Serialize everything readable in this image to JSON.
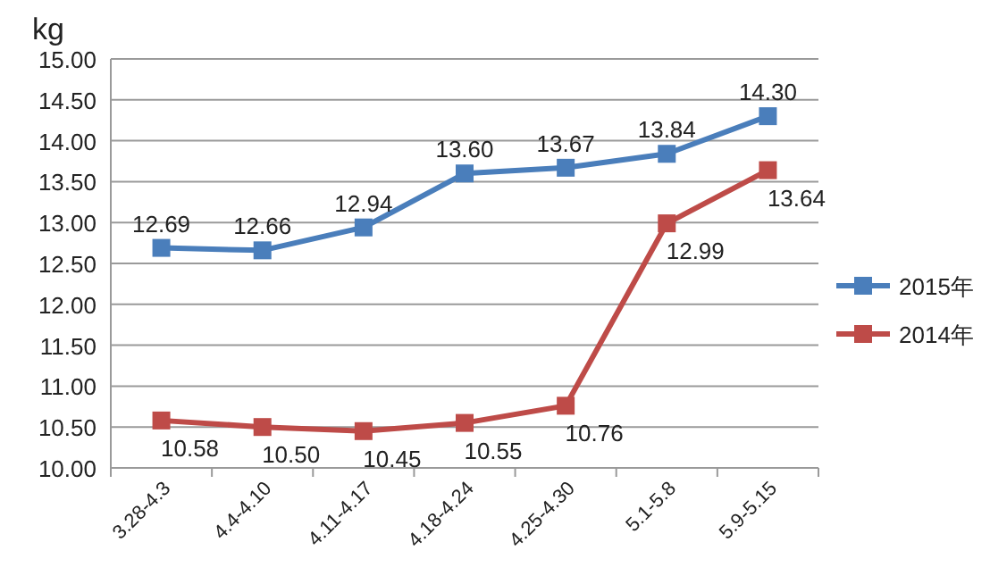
{
  "chart_data": {
    "type": "line",
    "ylabel": "kg",
    "categories": [
      "3.28-4.3",
      "4.4-4.10",
      "4.11-4.17",
      "4.18-4.24",
      "4.25-4.30",
      "5.1-5.8",
      "5.9-5.15"
    ],
    "series": [
      {
        "name": "2015年",
        "color": "#4a7ebb",
        "values": [
          12.69,
          12.66,
          12.94,
          13.6,
          13.67,
          13.84,
          14.3
        ],
        "value_labels": [
          "12.69",
          "12.66",
          "12.94",
          "13.60",
          "13.67",
          "13.84",
          "14.30"
        ]
      },
      {
        "name": "2014年",
        "color": "#be4b48",
        "values": [
          10.58,
          10.5,
          10.45,
          10.55,
          10.76,
          12.99,
          13.64
        ],
        "value_labels": [
          "10.58",
          "10.50",
          "10.45",
          "10.55",
          "10.76",
          "12.99",
          "13.64"
        ]
      }
    ],
    "ylim": [
      10,
      15
    ],
    "yticks": [
      {
        "value": 10,
        "label": "10.00"
      },
      {
        "value": 10.5,
        "label": "10.50"
      },
      {
        "value": 11,
        "label": "11.00"
      },
      {
        "value": 11.5,
        "label": "11.50"
      },
      {
        "value": 12,
        "label": "12.00"
      },
      {
        "value": 12.5,
        "label": "12.50"
      },
      {
        "value": 13,
        "label": "13.00"
      },
      {
        "value": 13.5,
        "label": "13.50"
      },
      {
        "value": 14,
        "label": "14.00"
      },
      {
        "value": 14.5,
        "label": "14.50"
      },
      {
        "value": 15,
        "label": "15.00"
      }
    ],
    "grid": "y",
    "legend": "right",
    "marker": "square",
    "line_style": "solid"
  }
}
